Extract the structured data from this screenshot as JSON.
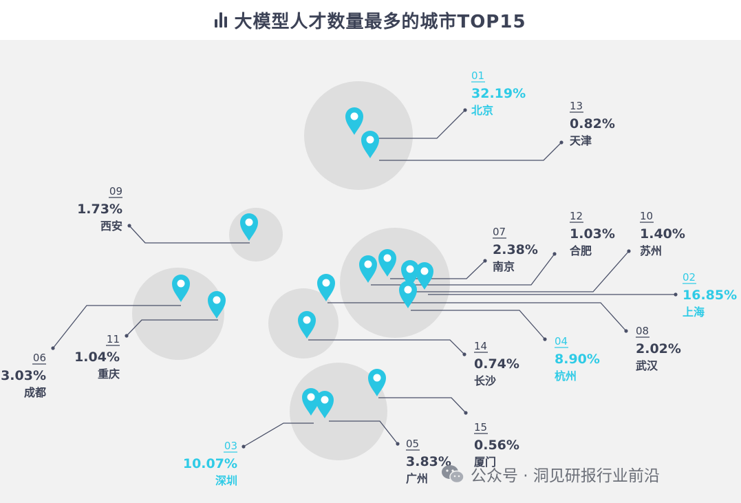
{
  "title": "大模型人才数量最多的城市TOP15",
  "watermark": "公众号 · 洞见研报行业前沿",
  "colors": {
    "highlight": "#2fcbe6",
    "normal": "#3c4256",
    "line": "#4a5068",
    "circle": "#dedede",
    "pin": "#29c6e3"
  },
  "chart_data": {
    "type": "table",
    "title": "大模型人才数量最多的城市TOP15",
    "value_unit": "%",
    "cities": [
      {
        "rank": "01",
        "city": "北京",
        "share": "32.19%",
        "value": 32.19,
        "highlight": true
      },
      {
        "rank": "02",
        "city": "上海",
        "share": "16.85%",
        "value": 16.85,
        "highlight": true
      },
      {
        "rank": "03",
        "city": "深圳",
        "share": "10.07%",
        "value": 10.07,
        "highlight": true
      },
      {
        "rank": "04",
        "city": "杭州",
        "share": "8.90%",
        "value": 8.9,
        "highlight": true
      },
      {
        "rank": "05",
        "city": "广州",
        "share": "3.83%",
        "value": 3.83,
        "highlight": false
      },
      {
        "rank": "06",
        "city": "成都",
        "share": "3.03%",
        "value": 3.03,
        "highlight": false
      },
      {
        "rank": "07",
        "city": "南京",
        "share": "2.38%",
        "value": 2.38,
        "highlight": false
      },
      {
        "rank": "08",
        "city": "武汉",
        "share": "2.02%",
        "value": 2.02,
        "highlight": false
      },
      {
        "rank": "09",
        "city": "西安",
        "share": "1.73%",
        "value": 1.73,
        "highlight": false
      },
      {
        "rank": "10",
        "city": "苏州",
        "share": "1.40%",
        "value": 1.4,
        "highlight": false
      },
      {
        "rank": "11",
        "city": "重庆",
        "share": "1.04%",
        "value": 1.04,
        "highlight": false
      },
      {
        "rank": "12",
        "city": "合肥",
        "share": "1.03%",
        "value": 1.03,
        "highlight": false
      },
      {
        "rank": "13",
        "city": "天津",
        "share": "0.82%",
        "value": 0.82,
        "highlight": false
      },
      {
        "rank": "14",
        "city": "长沙",
        "share": "0.74%",
        "value": 0.74,
        "highlight": false
      },
      {
        "rank": "15",
        "city": "厦门",
        "share": "0.56%",
        "value": 0.56,
        "highlight": false
      }
    ]
  }
}
